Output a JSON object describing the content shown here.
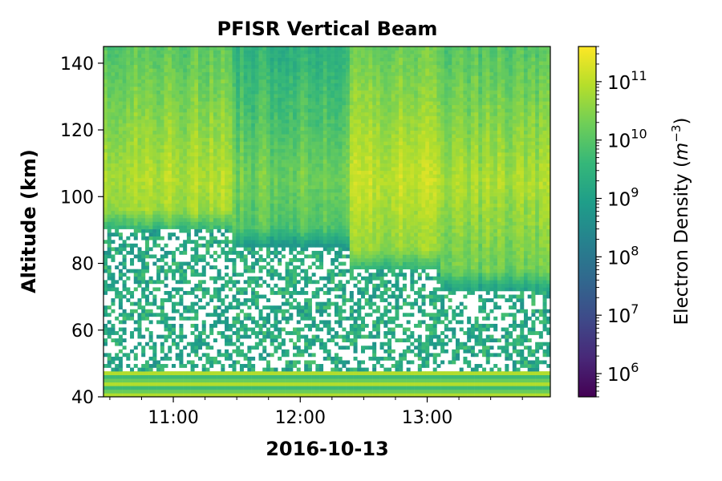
{
  "chart_data": {
    "type": "heatmap",
    "title": "PFISR Vertical Beam",
    "xlabel": "2016-10-13",
    "ylabel": "Altitude (km)",
    "x_tick_labels": [
      "11:00",
      "12:00",
      "13:00"
    ],
    "x_ticks_hours": [
      11,
      12,
      13
    ],
    "xlim_hours": [
      10.45,
      13.97
    ],
    "y_ticks": [
      40,
      60,
      80,
      100,
      120,
      140
    ],
    "ylim": [
      40,
      145
    ],
    "colorbar": {
      "label": "Electron Density (m⁻³)",
      "label_base": "Electron Density (",
      "label_var": "m",
      "label_exp": "−3",
      "label_close": ")",
      "scale": "log",
      "range": [
        400000.0,
        400000000000.0
      ],
      "tick_values": [
        1000000.0,
        10000000.0,
        100000000.0,
        1000000000.0,
        10000000000.0,
        100000000000.0
      ],
      "tick_base": "10",
      "tick_exponents": [
        "6",
        "7",
        "8",
        "9",
        "10",
        "11"
      ],
      "colormap": "viridis"
    },
    "features": [
      {
        "time_range_hours": [
          10.45,
          11.45
        ],
        "bottom_km": 90,
        "peak_log10_ne": 10.9
      },
      {
        "time_range_hours": [
          11.45,
          12.4
        ],
        "bottom_km": 85,
        "peak_log10_ne": 10.3
      },
      {
        "time_range_hours": [
          12.4,
          13.1
        ],
        "bottom_km": 78,
        "peak_log10_ne": 11.1
      },
      {
        "time_range_hours": [
          13.1,
          13.97
        ],
        "bottom_km": 72,
        "peak_log10_ne": 10.8
      }
    ],
    "low_altitude_noise_km": [
      48,
      90
    ],
    "bottom_bands_km": [
      40,
      48
    ]
  }
}
